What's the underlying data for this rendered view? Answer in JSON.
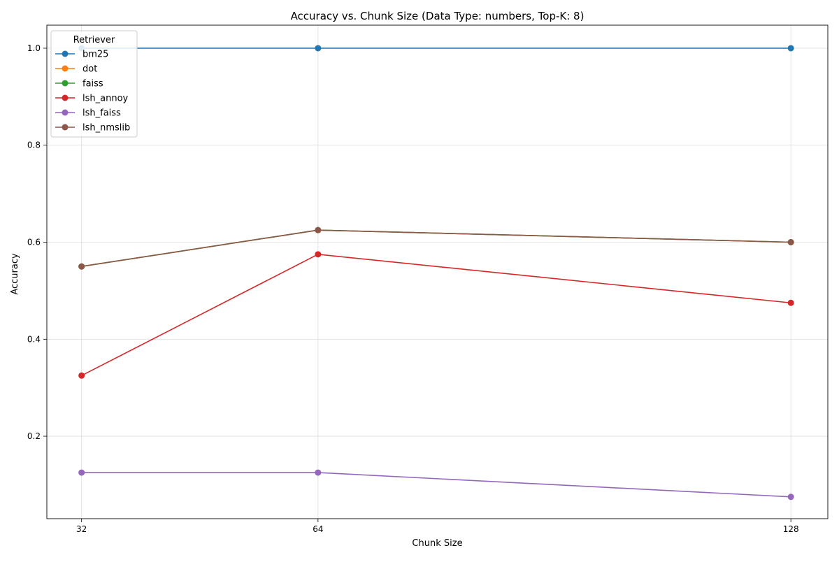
{
  "chart_data": {
    "type": "line",
    "title": "Accuracy vs. Chunk Size (Data Type: numbers, Top-K: 8)",
    "xlabel": "Chunk Size",
    "ylabel": "Accuracy",
    "x": [
      32,
      64,
      128
    ],
    "x_tick_labels": [
      "32",
      "64",
      "128"
    ],
    "y_ticks": [
      0.2,
      0.4,
      0.6,
      0.8,
      1.0
    ],
    "y_tick_labels": [
      "0.2",
      "0.4",
      "0.6",
      "0.8",
      "1.0"
    ],
    "xlim": [
      27.3,
      133.0
    ],
    "ylim": [
      0.03,
      1.0475
    ],
    "grid": true,
    "legend": {
      "title": "Retriever",
      "placement": "top-left"
    },
    "series": [
      {
        "name": "bm25",
        "color": "#1f77b4",
        "values": [
          1.0,
          1.0,
          1.0
        ]
      },
      {
        "name": "dot",
        "color": "#ff7f0e",
        "values": [
          0.55,
          0.625,
          0.6
        ]
      },
      {
        "name": "faiss",
        "color": "#2ca02c",
        "values": [
          0.55,
          0.625,
          0.6
        ]
      },
      {
        "name": "lsh_annoy",
        "color": "#d62728",
        "values": [
          0.325,
          0.575,
          0.475
        ]
      },
      {
        "name": "lsh_faiss",
        "color": "#9467bd",
        "values": [
          0.125,
          0.125,
          0.075
        ]
      },
      {
        "name": "lsh_nmslib",
        "color": "#8c564b",
        "values": [
          0.55,
          0.625,
          0.6
        ]
      }
    ]
  }
}
